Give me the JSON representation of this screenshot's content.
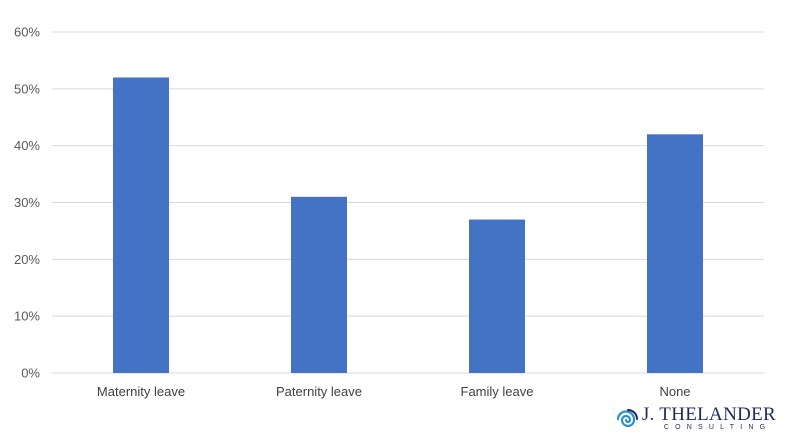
{
  "chart_data": {
    "type": "bar",
    "categories": [
      "Maternity leave",
      "Paternity leave",
      "Family leave",
      "None"
    ],
    "values": [
      52,
      31,
      27,
      42
    ],
    "y_ticks": [
      "0%",
      "10%",
      "20%",
      "30%",
      "40%",
      "50%",
      "60%"
    ],
    "ylim": [
      0,
      60
    ],
    "grid": true,
    "bar_color": "#4472C4",
    "grid_color": "#d9d9d9"
  },
  "logo": {
    "name": "J. THELANDER",
    "subtitle": "CONSULTING",
    "icon": "spiral-icon",
    "color": "#1f2a5a",
    "accent": "#2e8fd0"
  }
}
